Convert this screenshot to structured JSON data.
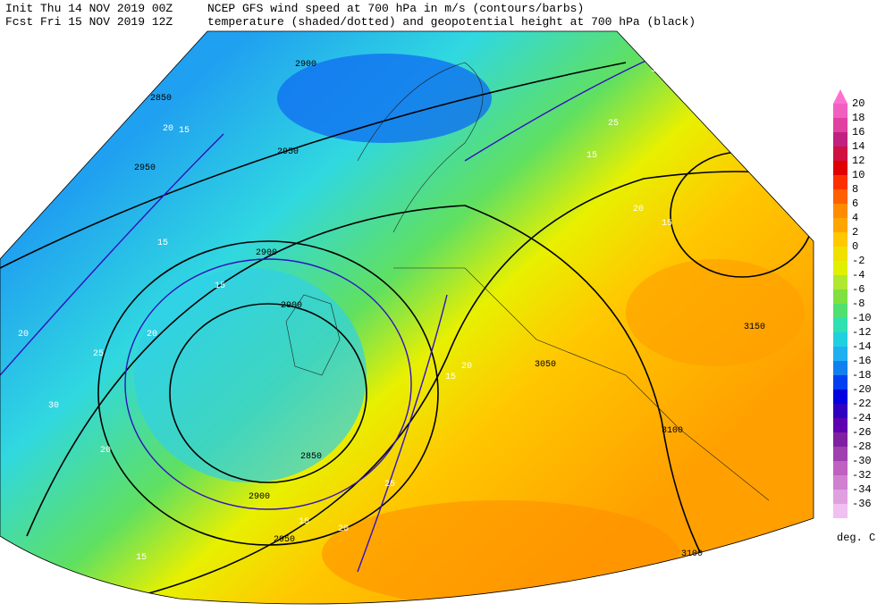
{
  "header": {
    "init": "Init  Thu 14 NOV 2019 00Z",
    "fcst": "Fcst Fri 15 NOV 2019 12Z",
    "title": "NCEP GFS wind speed at 700 hPa in m/s (contours/barbs)",
    "subtitle": "temperature (shaded/dotted) and geopotential height at 700 hPa (black)"
  },
  "legend": {
    "unit": "deg. C",
    "items": [
      {
        "value": 20,
        "color": "#f060c0"
      },
      {
        "value": 18,
        "color": "#e040a0"
      },
      {
        "value": 16,
        "color": "#c02080"
      },
      {
        "value": 14,
        "color": "#d01040"
      },
      {
        "value": 12,
        "color": "#e00000"
      },
      {
        "value": 10,
        "color": "#ff3000"
      },
      {
        "value": 8,
        "color": "#ff6000"
      },
      {
        "value": 6,
        "color": "#ff8c00"
      },
      {
        "value": 4,
        "color": "#ffa500"
      },
      {
        "value": 2,
        "color": "#ffc800"
      },
      {
        "value": 0,
        "color": "#f0e000"
      },
      {
        "value": -2,
        "color": "#e0f000"
      },
      {
        "value": -4,
        "color": "#b0e830"
      },
      {
        "value": -6,
        "color": "#80e040"
      },
      {
        "value": -8,
        "color": "#50e070"
      },
      {
        "value": -10,
        "color": "#30e0b0"
      },
      {
        "value": -12,
        "color": "#20d0e0"
      },
      {
        "value": -14,
        "color": "#20b0f0"
      },
      {
        "value": -16,
        "color": "#1080f0"
      },
      {
        "value": -18,
        "color": "#0040f0"
      },
      {
        "value": -20,
        "color": "#0000e0"
      },
      {
        "value": -22,
        "color": "#3000c0"
      },
      {
        "value": -24,
        "color": "#6000b0"
      },
      {
        "value": -26,
        "color": "#8020a0"
      },
      {
        "value": -28,
        "color": "#a040b0"
      },
      {
        "value": -30,
        "color": "#c060c0"
      },
      {
        "value": -32,
        "color": "#d080d0"
      },
      {
        "value": -34,
        "color": "#e0a0e0"
      },
      {
        "value": -36,
        "color": "#f0c0f0"
      }
    ]
  },
  "map": {
    "height_labels": [
      2900,
      2850,
      2950,
      2950,
      2900,
      2900,
      2850,
      2900,
      2950,
      3050,
      3100,
      3150,
      3100
    ],
    "wind_labels": [
      15,
      20,
      15,
      20,
      15,
      20,
      25,
      30,
      20,
      15,
      25,
      15,
      20,
      15,
      20,
      15,
      20,
      25,
      30,
      15
    ]
  }
}
